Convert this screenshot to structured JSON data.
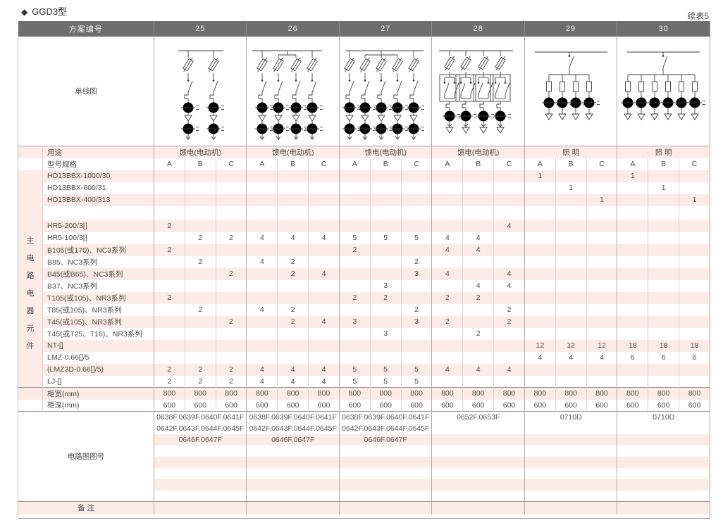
{
  "page": {
    "title_marker": "◆",
    "title": "GGD3型",
    "continued_label": "续表5"
  },
  "colors": {
    "header_bg": "#6e6e6e",
    "stripe_pink": "#fcebe6",
    "line_gray": "#b3aaa6",
    "diagram_stroke": "#3d3d3d"
  },
  "table": {
    "header": {
      "label": "方案编号",
      "schemes": [
        "25",
        "26",
        "27",
        "28",
        "29",
        "30"
      ]
    },
    "diagram_row": {
      "label": "单线图",
      "diagrams": [
        {
          "name": "single-line-diagram-25",
          "type": "motor-feeder",
          "branches": 2,
          "bracket": null
        },
        {
          "name": "single-line-diagram-26",
          "type": "motor-feeder",
          "branches": 4,
          "bracket": [
            1,
            2
          ]
        },
        {
          "name": "single-line-diagram-27",
          "type": "motor-feeder",
          "branches": 5,
          "bracket": [
            1,
            3
          ]
        },
        {
          "name": "single-line-diagram-28",
          "type": "reversing-feeder",
          "branches": 4,
          "bracket": null
        },
        {
          "name": "single-line-diagram-29",
          "type": "lighting",
          "branches": 4,
          "bracket": null
        },
        {
          "name": "single-line-diagram-30",
          "type": "lighting",
          "branches": 6,
          "bracket": null
        }
      ]
    },
    "usage_row": {
      "label": "用途",
      "values": [
        "馈电(电动机)",
        "馈电(电动机)",
        "馈电(电动机)",
        "馈电(电动机)",
        "照 明",
        "照 明"
      ]
    },
    "spec_row": {
      "label": "型号规格",
      "phases": [
        "A",
        "B",
        "C"
      ]
    },
    "left_group_label": "主电路电器元件",
    "component_rows": [
      {
        "label": "HD13BBX-1000/30",
        "values": [
          "",
          "",
          "",
          "",
          "",
          "",
          "",
          "",
          "",
          "",
          "",
          "",
          "1",
          "",
          "",
          "1",
          "",
          ""
        ]
      },
      {
        "label": "HD13BBX-600/31",
        "values": [
          "",
          "",
          "",
          "",
          "",
          "",
          "",
          "",
          "",
          "",
          "",
          "",
          "",
          "1",
          "",
          "",
          "1",
          ""
        ]
      },
      {
        "label": "HD13BBX-400/313",
        "values": [
          "",
          "",
          "",
          "",
          "",
          "",
          "",
          "",
          "",
          "",
          "",
          "",
          "",
          "",
          "1",
          "",
          "",
          "1"
        ]
      },
      {
        "label": "",
        "values": [
          "",
          "",
          "",
          "",
          "",
          "",
          "",
          "",
          "",
          "",
          "",
          "",
          "",
          "",
          "",
          "",
          "",
          ""
        ]
      },
      {
        "label": "HR5-200/3[]",
        "values": [
          "2",
          "",
          "",
          "",
          "",
          "",
          "",
          "",
          "",
          "",
          "",
          "4",
          "",
          "",
          "",
          "",
          "",
          ""
        ]
      },
      {
        "label": "HR5-100/3[]",
        "values": [
          "",
          "2",
          "2",
          "4",
          "4",
          "4",
          "5",
          "5",
          "5",
          "4",
          "4",
          "",
          "",
          "",
          "",
          "",
          "",
          ""
        ]
      },
      {
        "label": "B105(或170)、NC3系列",
        "values": [
          "2",
          "",
          "",
          "",
          "",
          "",
          "2",
          "",
          "",
          "4",
          "4",
          "",
          "",
          "",
          "",
          "",
          "",
          ""
        ]
      },
      {
        "label": "B85、NC3系列",
        "values": [
          "",
          "2",
          "",
          "4",
          "2",
          "",
          "",
          "",
          "2",
          "",
          "",
          "",
          "",
          "",
          "",
          "",
          "",
          ""
        ]
      },
      {
        "label": "B45(或B65)、NC3系列",
        "values": [
          "",
          "",
          "2",
          "",
          "2",
          "4",
          "",
          "",
          "3",
          "4",
          "",
          "4",
          "",
          "",
          "",
          "",
          "",
          ""
        ]
      },
      {
        "label": "B37、NC3系列",
        "values": [
          "",
          "",
          "",
          "",
          "",
          "",
          "",
          "3",
          "",
          "",
          "4",
          "4",
          "",
          "",
          "",
          "",
          "",
          ""
        ]
      },
      {
        "label": "T105(或105)、NR3系列",
        "values": [
          "2",
          "",
          "",
          "",
          "",
          "",
          "2",
          "2",
          "",
          "2",
          "2",
          "",
          "",
          "",
          "",
          "",
          "",
          ""
        ]
      },
      {
        "label": "T85(或105)、NR3系列",
        "values": [
          "",
          "2",
          "",
          "4",
          "2",
          "",
          "",
          "",
          "2",
          "",
          "",
          "2",
          "",
          "",
          "",
          "",
          "",
          ""
        ]
      },
      {
        "label": "T45(或105)、NR3系列",
        "values": [
          "",
          "",
          "2",
          "",
          "2",
          "4",
          "3",
          "",
          "3",
          "2",
          "",
          "2",
          "",
          "",
          "",
          "",
          "",
          ""
        ]
      },
      {
        "label": "T45(或T25、T16)、NR3系列",
        "values": [
          "",
          "",
          "",
          "",
          "",
          "",
          "",
          "3",
          "",
          "",
          "2",
          "",
          "",
          "",
          "",
          "",
          "",
          ""
        ]
      },
      {
        "label": "NT-[]",
        "values": [
          "",
          "",
          "",
          "",
          "",
          "",
          "",
          "",
          "",
          "",
          "",
          "",
          "12",
          "12",
          "12",
          "18",
          "18",
          "18"
        ]
      },
      {
        "label": "LMZ-0.66[]/5",
        "values": [
          "",
          "",
          "",
          "",
          "",
          "",
          "",
          "",
          "",
          "",
          "",
          "",
          "4",
          "4",
          "4",
          "6",
          "6",
          "6"
        ]
      },
      {
        "label": "(LMZ3D-0.66[]/5)",
        "values": [
          "2",
          "2",
          "2",
          "4",
          "4",
          "4",
          "5",
          "5",
          "5",
          "4",
          "4",
          "4",
          "",
          "",
          "",
          "",
          "",
          ""
        ]
      },
      {
        "label": "LJ-[]",
        "values": [
          "2",
          "2",
          "2",
          "4",
          "4",
          "4",
          "5",
          "5",
          "5",
          "",
          "",
          "",
          "",
          "",
          "",
          "",
          "",
          ""
        ]
      }
    ],
    "width_row": {
      "label": "柜宽(mm)",
      "values": [
        "800",
        "800",
        "800",
        "800",
        "800",
        "800",
        "800",
        "800",
        "800",
        "800",
        "800",
        "800",
        "800",
        "800",
        "800",
        "800",
        "800",
        "800"
      ]
    },
    "depth_row": {
      "label": "柜深(mm)",
      "values": [
        "600",
        "600",
        "600",
        "600",
        "600",
        "600",
        "600",
        "600",
        "600",
        "600",
        "600",
        "600",
        "600",
        "600",
        "600",
        "600",
        "600",
        "600"
      ]
    },
    "circuit_block": {
      "label": "电路图图号",
      "rows": [
        [
          "0638F.0639F.0640F.0641F",
          "0638F.0639F.0640F.0641F",
          "0638F.0639F.0640F.0641F",
          "0652F.0653F",
          "0710D",
          "0710D"
        ],
        [
          "0642F.0643F.0644F.0645F",
          "0642F.0643F.0644F.0645F",
          "0642F.0643F.0644F.0645F",
          "",
          "",
          ""
        ],
        [
          "0646F.0647F",
          "0646F.0647F",
          "0646F.0647F",
          "",
          "",
          ""
        ],
        [
          "",
          "",
          "",
          "",
          "",
          ""
        ],
        [
          "",
          "",
          "",
          "",
          "",
          ""
        ],
        [
          "",
          "",
          "",
          "",
          "",
          ""
        ],
        [
          "",
          "",
          "",
          "",
          "",
          ""
        ],
        [
          "",
          "",
          "",
          "",
          "",
          ""
        ]
      ]
    },
    "remark_row": {
      "label": "备 注",
      "values": [
        "",
        "",
        "",
        "",
        "",
        ""
      ]
    }
  }
}
